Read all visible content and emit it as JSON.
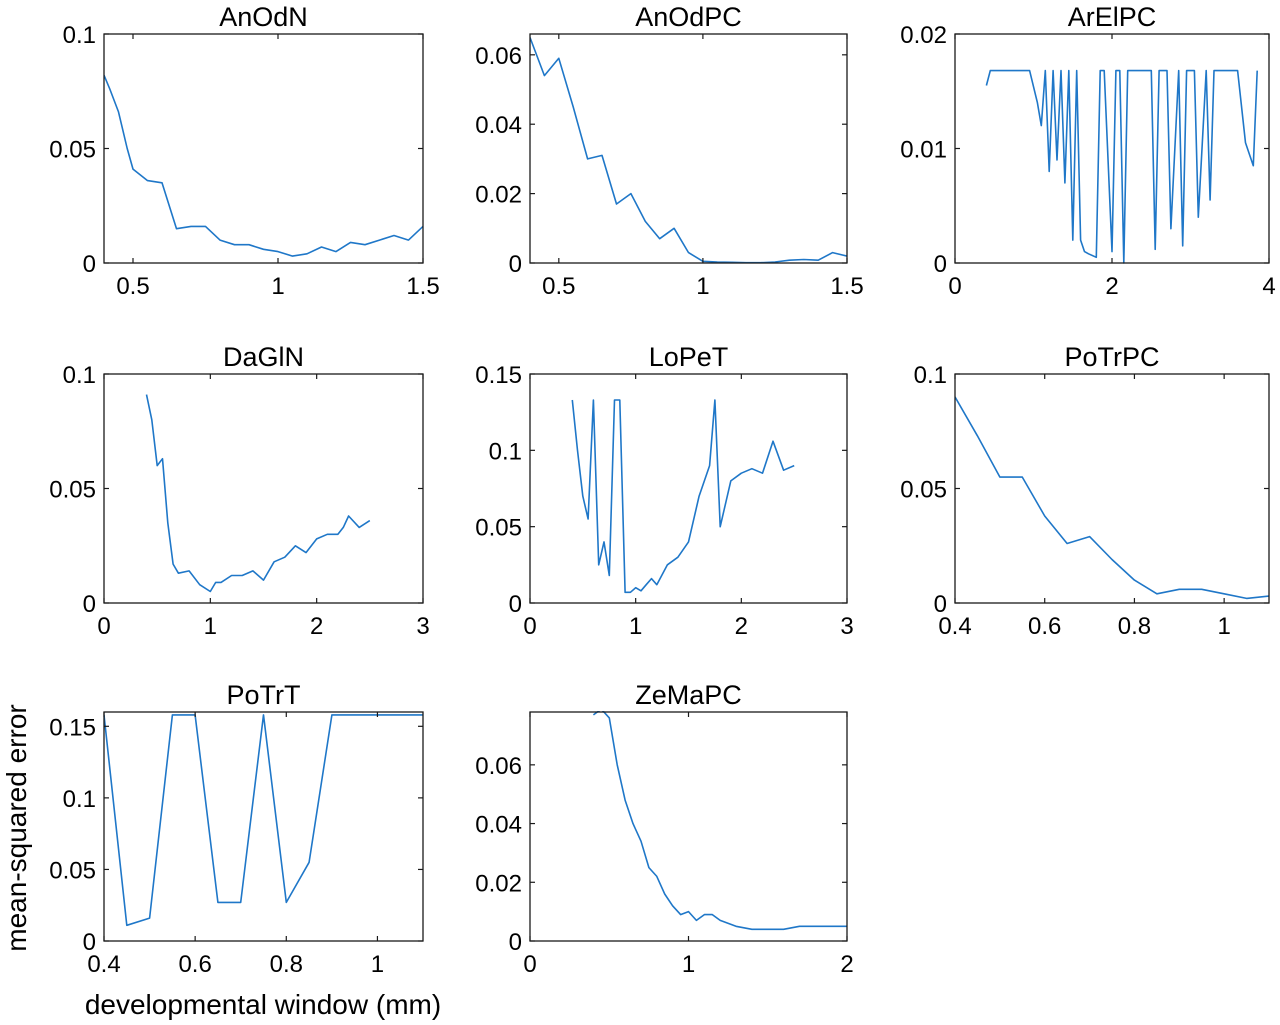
{
  "figure": {
    "ylabel": "mean-squared error",
    "xlabel": "developmental window (mm)",
    "line_color": "#1f77c8"
  },
  "chart_data": [
    {
      "type": "line",
      "title": "AnOdN",
      "xlim": [
        0.4,
        1.5
      ],
      "ylim": [
        0,
        0.1
      ],
      "xticks": [
        0.5,
        1,
        1.5
      ],
      "xticklabels": [
        "0.5",
        "1",
        "1.5"
      ],
      "yticks": [
        0,
        0.05,
        0.1
      ],
      "yticklabels": [
        "0",
        "0.05",
        "0.1"
      ],
      "x": [
        0.4,
        0.42,
        0.45,
        0.48,
        0.5,
        0.55,
        0.6,
        0.65,
        0.7,
        0.75,
        0.8,
        0.85,
        0.9,
        0.95,
        1.0,
        1.05,
        1.1,
        1.15,
        1.2,
        1.25,
        1.3,
        1.35,
        1.4,
        1.45,
        1.5
      ],
      "y": [
        0.082,
        0.076,
        0.066,
        0.05,
        0.041,
        0.036,
        0.035,
        0.015,
        0.016,
        0.016,
        0.01,
        0.008,
        0.008,
        0.006,
        0.005,
        0.003,
        0.004,
        0.007,
        0.005,
        0.009,
        0.008,
        0.01,
        0.012,
        0.01,
        0.016
      ]
    },
    {
      "type": "line",
      "title": "AnOdPC",
      "xlim": [
        0.4,
        1.5
      ],
      "ylim": [
        0,
        0.066
      ],
      "xticks": [
        0.5,
        1,
        1.5
      ],
      "xticklabels": [
        "0.5",
        "1",
        "1.5"
      ],
      "yticks": [
        0,
        0.02,
        0.04,
        0.06
      ],
      "yticklabels": [
        "0",
        "0.02",
        "0.04",
        "0.06"
      ],
      "x": [
        0.4,
        0.45,
        0.5,
        0.55,
        0.6,
        0.65,
        0.7,
        0.75,
        0.8,
        0.85,
        0.9,
        0.95,
        1.0,
        1.05,
        1.1,
        1.15,
        1.2,
        1.25,
        1.3,
        1.35,
        1.4,
        1.45,
        1.5
      ],
      "y": [
        0.065,
        0.054,
        0.059,
        0.045,
        0.03,
        0.031,
        0.017,
        0.02,
        0.012,
        0.007,
        0.01,
        0.003,
        0.0005,
        0.0003,
        0.0002,
        0.0001,
        0.0001,
        0.0003,
        0.0008,
        0.001,
        0.0008,
        0.003,
        0.002
      ]
    },
    {
      "type": "line",
      "title": "ArElPC",
      "xlim": [
        0,
        4
      ],
      "ylim": [
        0,
        0.02
      ],
      "xticks": [
        0,
        2,
        4
      ],
      "xticklabels": [
        "0",
        "2",
        "4"
      ],
      "yticks": [
        0,
        0.01,
        0.02
      ],
      "yticklabels": [
        "0",
        "0.01",
        "0.02"
      ],
      "x": [
        0.4,
        0.45,
        0.5,
        0.95,
        1.05,
        1.1,
        1.15,
        1.2,
        1.25,
        1.3,
        1.35,
        1.4,
        1.45,
        1.5,
        1.55,
        1.6,
        1.65,
        1.7,
        1.8,
        1.85,
        1.9,
        2.0,
        2.05,
        2.1,
        2.15,
        2.2,
        2.25,
        2.3,
        2.5,
        2.55,
        2.6,
        2.7,
        2.75,
        2.85,
        2.9,
        2.95,
        3.05,
        3.1,
        3.2,
        3.25,
        3.3,
        3.4,
        3.45,
        3.6,
        3.7,
        3.75,
        3.8,
        3.85
      ],
      "y": [
        0.0155,
        0.0168,
        0.0168,
        0.0168,
        0.014,
        0.012,
        0.0168,
        0.008,
        0.0168,
        0.009,
        0.0168,
        0.007,
        0.0168,
        0.002,
        0.0168,
        0.002,
        0.001,
        0.0008,
        0.0005,
        0.0168,
        0.0168,
        0.001,
        0.0168,
        0.0168,
        0,
        0.0168,
        0.0168,
        0.0168,
        0.0168,
        0.0012,
        0.0168,
        0.0168,
        0.003,
        0.0168,
        0.0015,
        0.0168,
        0.0168,
        0.004,
        0.0168,
        0.0055,
        0.0168,
        0.0168,
        0.0168,
        0.0168,
        0.0105,
        0.0095,
        0.0085,
        0.0168
      ]
    },
    {
      "type": "line",
      "title": "DaGlN",
      "xlim": [
        0,
        3
      ],
      "ylim": [
        0,
        0.1
      ],
      "xticks": [
        0,
        1,
        2,
        3
      ],
      "xticklabels": [
        "0",
        "1",
        "2",
        "3"
      ],
      "yticks": [
        0,
        0.05,
        0.1
      ],
      "yticklabels": [
        "0",
        "0.05",
        "0.1"
      ],
      "x": [
        0.4,
        0.45,
        0.5,
        0.55,
        0.6,
        0.65,
        0.7,
        0.8,
        0.9,
        1.0,
        1.05,
        1.1,
        1.2,
        1.3,
        1.4,
        1.5,
        1.6,
        1.7,
        1.8,
        1.9,
        2.0,
        2.1,
        2.2,
        2.25,
        2.3,
        2.4,
        2.5
      ],
      "y": [
        0.091,
        0.08,
        0.06,
        0.063,
        0.035,
        0.017,
        0.013,
        0.014,
        0.008,
        0.005,
        0.009,
        0.009,
        0.012,
        0.012,
        0.014,
        0.01,
        0.018,
        0.02,
        0.025,
        0.022,
        0.028,
        0.03,
        0.03,
        0.033,
        0.038,
        0.033,
        0.036
      ]
    },
    {
      "type": "line",
      "title": "LoPeT",
      "xlim": [
        0,
        3
      ],
      "ylim": [
        0,
        0.15
      ],
      "xticks": [
        0,
        1,
        2,
        3
      ],
      "xticklabels": [
        "0",
        "1",
        "2",
        "3"
      ],
      "yticks": [
        0,
        0.05,
        0.1,
        0.15
      ],
      "yticklabels": [
        "0",
        "0.05",
        "0.1",
        "0.15"
      ],
      "x": [
        0.4,
        0.45,
        0.5,
        0.55,
        0.6,
        0.65,
        0.7,
        0.75,
        0.8,
        0.85,
        0.9,
        0.95,
        1.0,
        1.05,
        1.1,
        1.15,
        1.2,
        1.3,
        1.4,
        1.5,
        1.6,
        1.7,
        1.75,
        1.8,
        1.9,
        2.0,
        2.1,
        2.2,
        2.3,
        2.4,
        2.5
      ],
      "y": [
        0.133,
        0.1,
        0.07,
        0.055,
        0.133,
        0.025,
        0.04,
        0.018,
        0.133,
        0.133,
        0.007,
        0.007,
        0.01,
        0.008,
        0.012,
        0.016,
        0.012,
        0.025,
        0.03,
        0.04,
        0.07,
        0.09,
        0.133,
        0.05,
        0.08,
        0.085,
        0.088,
        0.085,
        0.106,
        0.087,
        0.09
      ]
    },
    {
      "type": "line",
      "title": "PoTrPC",
      "xlim": [
        0.4,
        1.1
      ],
      "ylim": [
        0,
        0.1
      ],
      "xticks": [
        0.4,
        0.6,
        0.8,
        1
      ],
      "xticklabels": [
        "0.4",
        "0.6",
        "0.8",
        "1"
      ],
      "yticks": [
        0,
        0.05,
        0.1
      ],
      "yticklabels": [
        "0",
        "0.05",
        "0.1"
      ],
      "x": [
        0.4,
        0.45,
        0.5,
        0.55,
        0.6,
        0.65,
        0.7,
        0.75,
        0.8,
        0.85,
        0.9,
        0.95,
        1.0,
        1.05,
        1.1
      ],
      "y": [
        0.09,
        0.073,
        0.055,
        0.055,
        0.038,
        0.026,
        0.029,
        0.019,
        0.01,
        0.004,
        0.006,
        0.006,
        0.004,
        0.002,
        0.003
      ]
    },
    {
      "type": "line",
      "title": "PoTrT",
      "xlim": [
        0.4,
        1.1
      ],
      "ylim": [
        0,
        0.16
      ],
      "xticks": [
        0.4,
        0.6,
        0.8,
        1
      ],
      "xticklabels": [
        "0.4",
        "0.6",
        "0.8",
        "1"
      ],
      "yticks": [
        0,
        0.05,
        0.1,
        0.15
      ],
      "yticklabels": [
        "0",
        "0.05",
        "0.1",
        "0.15"
      ],
      "x": [
        0.4,
        0.45,
        0.5,
        0.55,
        0.6,
        0.65,
        0.7,
        0.75,
        0.8,
        0.85,
        0.9,
        0.95,
        1.0,
        1.05,
        1.1
      ],
      "y": [
        0.158,
        0.011,
        0.016,
        0.158,
        0.158,
        0.027,
        0.027,
        0.158,
        0.027,
        0.055,
        0.158,
        0.158,
        0.158,
        0.158,
        0.158
      ]
    },
    {
      "type": "line",
      "title": "ZeMaPC",
      "xlim": [
        0,
        2
      ],
      "ylim": [
        0,
        0.078
      ],
      "xticks": [
        0,
        1,
        2
      ],
      "xticklabels": [
        "0",
        "1",
        "2"
      ],
      "yticks": [
        0,
        0.02,
        0.04,
        0.06
      ],
      "yticklabels": [
        "0",
        "0.02",
        "0.04",
        "0.06"
      ],
      "x": [
        0.4,
        0.45,
        0.5,
        0.55,
        0.6,
        0.65,
        0.7,
        0.75,
        0.8,
        0.85,
        0.9,
        0.95,
        1.0,
        1.05,
        1.1,
        1.15,
        1.2,
        1.3,
        1.4,
        1.5,
        1.6,
        1.7,
        1.8,
        1.9,
        2.0
      ],
      "y": [
        0.077,
        0.079,
        0.076,
        0.06,
        0.048,
        0.04,
        0.034,
        0.025,
        0.022,
        0.016,
        0.012,
        0.009,
        0.01,
        0.007,
        0.009,
        0.009,
        0.007,
        0.005,
        0.004,
        0.004,
        0.004,
        0.005,
        0.005,
        0.005,
        0.005
      ]
    }
  ]
}
